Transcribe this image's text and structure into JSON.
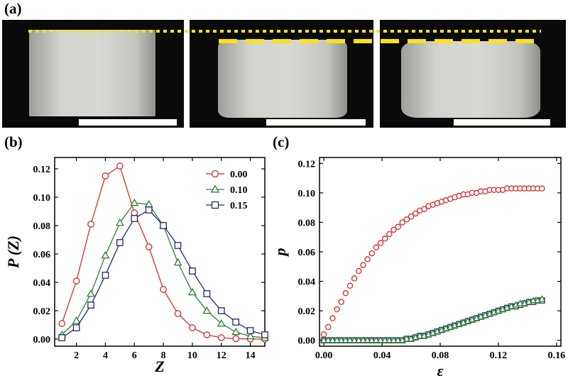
{
  "panel_labels": {
    "a": "(a)",
    "b": "(b)",
    "c": "(c)"
  },
  "colors": {
    "red": "#d62b2b",
    "green": "#2e7d32",
    "blue": "#1f2a6b",
    "reference_line": "#f7e21b"
  },
  "chart_data": [
    {
      "type": "line",
      "panel": "(b)",
      "xlabel": "Z",
      "ylabel": "P (Z)",
      "xlim": [
        0.5,
        15
      ],
      "ylim": [
        -0.005,
        0.128
      ],
      "xticks": [
        2,
        4,
        6,
        8,
        10,
        12,
        14
      ],
      "yticks": [
        0.0,
        0.02,
        0.04,
        0.06,
        0.08,
        0.1,
        0.12
      ],
      "ytick_labels": [
        "0.00",
        "0.02",
        "0.04",
        "0.06",
        "0.08",
        "0.10",
        "0.12"
      ],
      "legend_position": "top-right",
      "x": [
        1,
        2,
        3,
        4,
        5,
        6,
        7,
        8,
        9,
        10,
        11,
        12,
        13,
        14,
        15
      ],
      "series": [
        {
          "name": "0.00",
          "marker": "circle",
          "color": "#d62b2b",
          "values": [
            0.011,
            0.041,
            0.081,
            0.115,
            0.122,
            0.089,
            0.065,
            0.035,
            0.018,
            0.008,
            0.003,
            0.001,
            0.0003,
            0.0001,
            0.0
          ]
        },
        {
          "name": "0.10",
          "marker": "triangle",
          "color": "#2e7d32",
          "values": [
            0.003,
            0.013,
            0.032,
            0.059,
            0.082,
            0.096,
            0.095,
            0.08,
            0.054,
            0.033,
            0.02,
            0.011,
            0.005,
            0.002,
            0.001
          ]
        },
        {
          "name": "0.15",
          "marker": "square",
          "color": "#1f2a6b",
          "values": [
            0.001,
            0.008,
            0.024,
            0.045,
            0.068,
            0.085,
            0.091,
            0.08,
            0.066,
            0.048,
            0.032,
            0.02,
            0.012,
            0.006,
            0.003
          ]
        }
      ]
    },
    {
      "type": "scatter",
      "panel": "(c)",
      "xlabel": "ε",
      "ylabel": "p",
      "xlim": [
        -0.003,
        0.163
      ],
      "ylim": [
        -0.004,
        0.124
      ],
      "xticks": [
        0.0,
        0.04,
        0.08,
        0.12,
        0.16
      ],
      "xtick_labels": [
        "0.00",
        "0.04",
        "0.08",
        "0.12",
        "0.16"
      ],
      "yticks": [
        0.0,
        0.02,
        0.04,
        0.06,
        0.08,
        0.1,
        0.12
      ],
      "ytick_labels": [
        "0.00",
        "0.02",
        "0.04",
        "0.06",
        "0.08",
        "0.10",
        "0.12"
      ],
      "series": [
        {
          "marker": "circle",
          "color": "#d62b2b",
          "points": [
            [
              0.0,
              0.004
            ],
            [
              0.003,
              0.009
            ],
            [
              0.006,
              0.015
            ],
            [
              0.009,
              0.021
            ],
            [
              0.012,
              0.026
            ],
            [
              0.015,
              0.032
            ],
            [
              0.018,
              0.037
            ],
            [
              0.021,
              0.042
            ],
            [
              0.024,
              0.047
            ],
            [
              0.027,
              0.051
            ],
            [
              0.03,
              0.055
            ],
            [
              0.033,
              0.059
            ],
            [
              0.036,
              0.063
            ],
            [
              0.039,
              0.066
            ],
            [
              0.042,
              0.069
            ],
            [
              0.045,
              0.072
            ],
            [
              0.048,
              0.075
            ],
            [
              0.051,
              0.077
            ],
            [
              0.054,
              0.08
            ],
            [
              0.057,
              0.082
            ],
            [
              0.06,
              0.084
            ],
            [
              0.063,
              0.086
            ],
            [
              0.066,
              0.088
            ],
            [
              0.069,
              0.089
            ],
            [
              0.072,
              0.091
            ],
            [
              0.075,
              0.092
            ],
            [
              0.078,
              0.093
            ],
            [
              0.081,
              0.094
            ],
            [
              0.084,
              0.095
            ],
            [
              0.087,
              0.096
            ],
            [
              0.09,
              0.097
            ],
            [
              0.093,
              0.098
            ],
            [
              0.096,
              0.099
            ],
            [
              0.099,
              0.099
            ],
            [
              0.102,
              0.1
            ],
            [
              0.105,
              0.1
            ],
            [
              0.108,
              0.101
            ],
            [
              0.111,
              0.101
            ],
            [
              0.114,
              0.102
            ],
            [
              0.117,
              0.102
            ],
            [
              0.12,
              0.102
            ],
            [
              0.123,
              0.102
            ],
            [
              0.126,
              0.103
            ],
            [
              0.129,
              0.103
            ],
            [
              0.132,
              0.103
            ],
            [
              0.135,
              0.103
            ],
            [
              0.138,
              0.103
            ],
            [
              0.141,
              0.103
            ],
            [
              0.144,
              0.103
            ],
            [
              0.147,
              0.103
            ],
            [
              0.15,
              0.103
            ]
          ]
        },
        {
          "marker": "square",
          "color": "#1f2a6b",
          "points": [
            [
              0.0,
              0.0
            ],
            [
              0.003,
              0.0
            ],
            [
              0.006,
              0.0
            ],
            [
              0.009,
              0.0
            ],
            [
              0.012,
              0.0
            ],
            [
              0.015,
              0.0
            ],
            [
              0.018,
              0.0
            ],
            [
              0.021,
              0.0
            ],
            [
              0.024,
              0.0
            ],
            [
              0.027,
              0.0
            ],
            [
              0.03,
              0.0
            ],
            [
              0.033,
              0.0
            ],
            [
              0.036,
              0.0
            ],
            [
              0.039,
              0.0
            ],
            [
              0.042,
              0.0
            ],
            [
              0.045,
              0.0
            ],
            [
              0.048,
              0.0
            ],
            [
              0.051,
              0.0
            ],
            [
              0.054,
              0.0
            ],
            [
              0.057,
              0.001
            ],
            [
              0.06,
              0.001
            ],
            [
              0.063,
              0.002
            ],
            [
              0.066,
              0.003
            ],
            [
              0.069,
              0.003
            ],
            [
              0.072,
              0.004
            ],
            [
              0.075,
              0.005
            ],
            [
              0.078,
              0.006
            ],
            [
              0.081,
              0.007
            ],
            [
              0.084,
              0.008
            ],
            [
              0.087,
              0.009
            ],
            [
              0.09,
              0.01
            ],
            [
              0.093,
              0.011
            ],
            [
              0.096,
              0.012
            ],
            [
              0.099,
              0.013
            ],
            [
              0.102,
              0.014
            ],
            [
              0.105,
              0.015
            ],
            [
              0.108,
              0.016
            ],
            [
              0.111,
              0.017
            ],
            [
              0.114,
              0.018
            ],
            [
              0.117,
              0.019
            ],
            [
              0.12,
              0.02
            ],
            [
              0.123,
              0.021
            ],
            [
              0.126,
              0.022
            ],
            [
              0.129,
              0.023
            ],
            [
              0.132,
              0.023
            ],
            [
              0.135,
              0.024
            ],
            [
              0.138,
              0.025
            ],
            [
              0.141,
              0.026
            ],
            [
              0.144,
              0.026
            ],
            [
              0.147,
              0.027
            ],
            [
              0.15,
              0.027
            ]
          ]
        },
        {
          "marker": "triangle",
          "color": "#2e7d32",
          "points": [
            [
              0.0,
              0.0
            ],
            [
              0.003,
              0.0
            ],
            [
              0.006,
              0.0
            ],
            [
              0.009,
              0.0
            ],
            [
              0.012,
              0.0
            ],
            [
              0.015,
              0.0
            ],
            [
              0.018,
              0.0
            ],
            [
              0.021,
              0.0
            ],
            [
              0.024,
              0.0
            ],
            [
              0.027,
              0.0
            ],
            [
              0.03,
              0.0
            ],
            [
              0.033,
              0.0
            ],
            [
              0.036,
              0.0
            ],
            [
              0.039,
              0.0
            ],
            [
              0.042,
              0.0
            ],
            [
              0.045,
              0.0
            ],
            [
              0.048,
              0.0
            ],
            [
              0.051,
              0.0
            ],
            [
              0.054,
              0.0
            ],
            [
              0.057,
              0.001
            ],
            [
              0.06,
              0.001
            ],
            [
              0.063,
              0.002
            ],
            [
              0.066,
              0.003
            ],
            [
              0.069,
              0.003
            ],
            [
              0.072,
              0.004
            ],
            [
              0.075,
              0.005
            ],
            [
              0.078,
              0.006
            ],
            [
              0.081,
              0.007
            ],
            [
              0.084,
              0.008
            ],
            [
              0.087,
              0.009
            ],
            [
              0.09,
              0.01
            ],
            [
              0.093,
              0.011
            ],
            [
              0.096,
              0.012
            ],
            [
              0.099,
              0.013
            ],
            [
              0.102,
              0.014
            ],
            [
              0.105,
              0.015
            ],
            [
              0.108,
              0.016
            ],
            [
              0.111,
              0.017
            ],
            [
              0.114,
              0.018
            ],
            [
              0.117,
              0.019
            ],
            [
              0.12,
              0.02
            ],
            [
              0.123,
              0.021
            ],
            [
              0.126,
              0.022
            ],
            [
              0.129,
              0.023
            ],
            [
              0.132,
              0.024
            ],
            [
              0.135,
              0.025
            ],
            [
              0.138,
              0.025
            ],
            [
              0.141,
              0.026
            ],
            [
              0.144,
              0.027
            ],
            [
              0.147,
              0.027
            ],
            [
              0.15,
              0.028
            ]
          ]
        }
      ]
    }
  ]
}
